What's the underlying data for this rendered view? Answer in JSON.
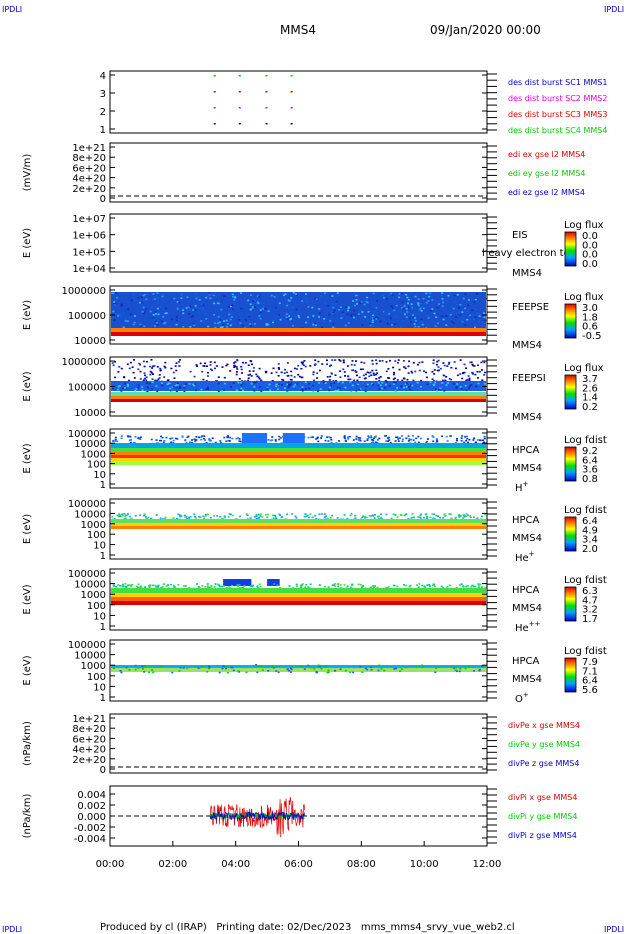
{
  "corners": {
    "tl": "IPDLI",
    "tr": "IPDLI",
    "bl": "IPDLI",
    "br": "IPDLI"
  },
  "header": {
    "spacecraft": "MMS4",
    "datetime": "09/Jan/2020 00:00"
  },
  "footer": "Produced by cl (IRAP)   Printing date: 02/Dec/2023   mms_mms4_srvy_vue_web2.cl",
  "colors": {
    "blue": "#0000cc",
    "magenta": "#dd00dd",
    "red": "#dd0000",
    "green": "#00cc00"
  },
  "chart_data": {
    "type": "heatmap",
    "x_axis": {
      "range_hours": [
        0,
        12
      ],
      "tick_labels": [
        "00:00",
        "02:00",
        "04:00",
        "06:00",
        "08:00",
        "10:00",
        "12:00"
      ]
    },
    "panels": [
      {
        "id": "burst",
        "type": "scatter",
        "ylabel": "",
        "ytick_labels": [
          "4",
          "3",
          "2",
          "1"
        ],
        "legend": [
          {
            "text": "des dist burst SC1 MMS1",
            "color": "#0000cc"
          },
          {
            "text": "des dist burst SC2 MMS2",
            "color": "#dd00dd"
          },
          {
            "text": "des dist burst SC3 MMS3",
            "color": "#dd0000"
          },
          {
            "text": "des dist burst SC4 MMS4",
            "color": "#00cc00"
          }
        ],
        "x_hours": [
          3.3,
          4.1,
          4.95,
          5.75
        ]
      },
      {
        "id": "edi",
        "type": "line",
        "ylabel": "(mV/m)",
        "ytick_labels": [
          "1e+21",
          "8e+20",
          "6e+20",
          "4e+20",
          "2e+20",
          "0"
        ],
        "legend": [
          {
            "text": "edi ex gse l2 MMS4",
            "color": "#dd0000"
          },
          {
            "text": "edi ey gse l2 MMS4",
            "color": "#00cc00"
          },
          {
            "text": "edi ez gse l2 MMS4",
            "color": "#0000cc"
          }
        ]
      },
      {
        "id": "eis",
        "type": "heatmap",
        "ylabel": "E (eV)",
        "ytick_labels": [
          "1e+07",
          "1e+06",
          "1e+05",
          "1e+04"
        ],
        "instrument": [
          "EIS"
        ],
        "overlay_text": "heavy electron to",
        "spacecraft_label": "MMS4",
        "colorbar": {
          "title": "Log flux",
          "tick_labels": [
            "0.0",
            "0.0",
            "0.0",
            "0.0"
          ]
        }
      },
      {
        "id": "feepse",
        "type": "heatmap",
        "ylabel": "E (eV)",
        "ytick_labels": [
          "1000000",
          "100000",
          "10000"
        ],
        "instrument": [
          "FEEPSE"
        ],
        "spacecraft_label": "MMS4",
        "colorbar": {
          "title": "Log flux",
          "tick_labels": [
            "3.0",
            "1.8",
            "0.6",
            "-0.5"
          ]
        }
      },
      {
        "id": "feepsi",
        "type": "heatmap",
        "ylabel": "E (eV)",
        "ytick_labels": [
          "1000000",
          "100000",
          "10000"
        ],
        "instrument": [
          "FEEPSI"
        ],
        "spacecraft_label": "MMS4",
        "colorbar": {
          "title": "Log flux",
          "tick_labels": [
            "3.7",
            "2.6",
            "1.4",
            "0.2"
          ]
        }
      },
      {
        "id": "hpca_h",
        "type": "heatmap",
        "ylabel": "E (eV)",
        "ytick_labels": [
          "100000",
          "10000",
          "1000",
          "100",
          "10",
          "1"
        ],
        "instrument": [
          "HPCA",
          "MMS4"
        ],
        "species": "H",
        "species_sup": "+",
        "colorbar": {
          "title": "Log fdist",
          "tick_labels": [
            "9.2",
            "6.4",
            "3.6",
            "0.8"
          ]
        },
        "bursts_hours": [
          [
            4.2,
            5.0
          ],
          [
            5.5,
            6.2
          ]
        ]
      },
      {
        "id": "hpca_he",
        "type": "heatmap",
        "ylabel": "E (eV)",
        "ytick_labels": [
          "100000",
          "10000",
          "1000",
          "100",
          "10",
          "1"
        ],
        "instrument": [
          "HPCA",
          "MMS4"
        ],
        "species": "He",
        "species_sup": "+",
        "colorbar": {
          "title": "Log fdist",
          "tick_labels": [
            "6.4",
            "4.9",
            "3.4",
            "2.0"
          ]
        }
      },
      {
        "id": "hpca_hepp",
        "type": "heatmap",
        "ylabel": "E (eV)",
        "ytick_labels": [
          "100000",
          "10000",
          "1000",
          "100",
          "10",
          "1"
        ],
        "instrument": [
          "HPCA",
          "MMS4"
        ],
        "species": "He",
        "species_sup": "++",
        "colorbar": {
          "title": "Log fdist",
          "tick_labels": [
            "6.3",
            "4.7",
            "3.2",
            "1.7"
          ]
        },
        "bursts_hours": [
          [
            3.6,
            4.5
          ],
          [
            5.0,
            5.4
          ]
        ]
      },
      {
        "id": "hpca_o",
        "type": "heatmap",
        "ylabel": "E (eV)",
        "ytick_labels": [
          "100000",
          "10000",
          "1000",
          "100",
          "10",
          "1"
        ],
        "instrument": [
          "HPCA",
          "MMS4"
        ],
        "species": "O",
        "species_sup": "+",
        "colorbar": {
          "title": "Log fdist",
          "tick_labels": [
            "7.9",
            "7.1",
            "6.4",
            "5.6"
          ]
        }
      },
      {
        "id": "divpe",
        "type": "line",
        "ylabel": "(nPa/km)",
        "ytick_labels": [
          "1e+21",
          "8e+20",
          "6e+20",
          "4e+20",
          "2e+20",
          "0"
        ],
        "legend": [
          {
            "text": "divPe x gse MMS4",
            "color": "#dd0000"
          },
          {
            "text": "divPe y gse MMS4",
            "color": "#00cc00"
          },
          {
            "text": "divPe z gse MMS4",
            "color": "#0000cc"
          }
        ]
      },
      {
        "id": "divpi",
        "type": "line",
        "ylabel": "(nPa/km)",
        "ytick_labels": [
          "0.004",
          "0.002",
          "0.000",
          "-0.002",
          "-0.004"
        ],
        "ylim": [
          -0.005,
          0.005
        ],
        "legend": [
          {
            "text": "divPi x gse MMS4",
            "color": "#dd0000"
          },
          {
            "text": "divPi y gse MMS4",
            "color": "#00cc00"
          },
          {
            "text": "divPi z gse MMS4",
            "color": "#0000cc"
          }
        ],
        "data_range_hours": [
          3.2,
          6.2
        ]
      }
    ]
  }
}
